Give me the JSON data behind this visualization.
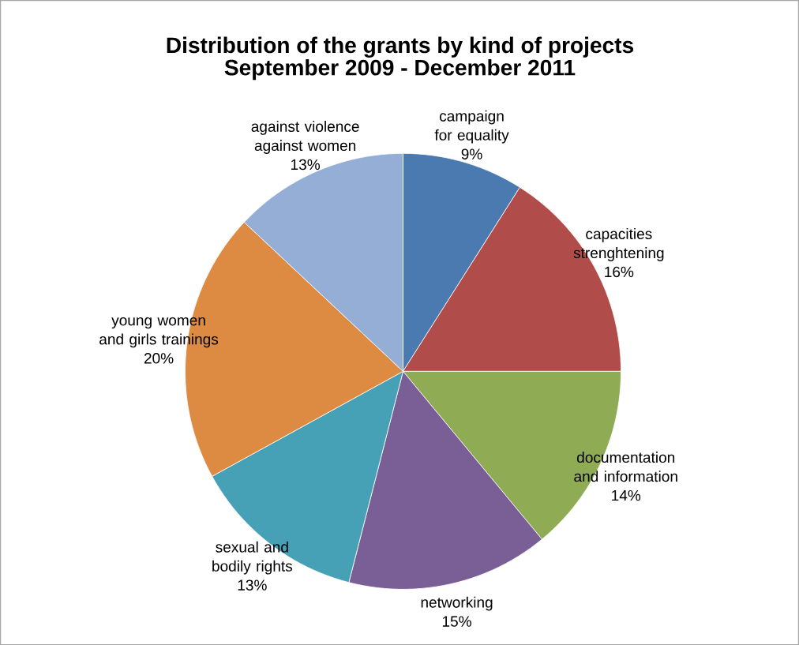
{
  "chart_data": {
    "type": "pie",
    "title": "Distribution of the grants by kind of projects",
    "subtitle": "September 2009 - December 2011",
    "categories": [
      "campaign for equality",
      "capacities strenghtening",
      "documentation and information",
      "networking",
      "sexual and bodily rights",
      "young women and girls trainings",
      "against violence against women"
    ],
    "values": [
      9,
      16,
      14,
      15,
      13,
      20,
      13
    ],
    "value_labels": [
      "9%",
      "16%",
      "14%",
      "15%",
      "13%",
      "20%",
      "13%"
    ],
    "colors": [
      "#4a7ab0",
      "#b04c4a",
      "#8fac55",
      "#7a5f96",
      "#46a0b6",
      "#dd8a43",
      "#95aed6"
    ]
  }
}
